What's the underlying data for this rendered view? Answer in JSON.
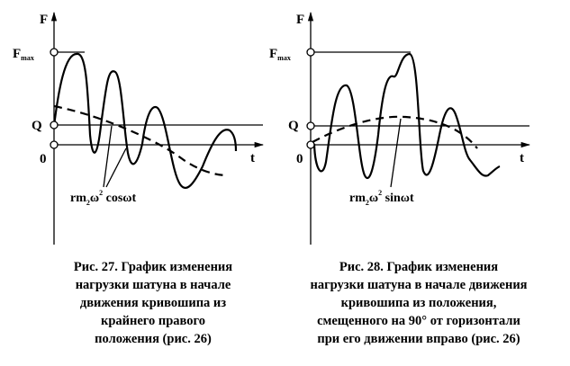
{
  "figures": [
    {
      "axis_y": "F",
      "fmax": {
        "main": "F",
        "sub": "max"
      },
      "q": "Q",
      "zero": "0",
      "axis_x": "t",
      "annotation": {
        "pre": "rm",
        "sub": "2",
        "mid": "ω",
        "sup": "2",
        "post": " cosωt"
      },
      "caption": [
        "Рис. 27. График изменения",
        "нагрузки шатуна в начале",
        "движения кривошипа из",
        "крайнего правого",
        "положения (рис. 26)"
      ]
    },
    {
      "axis_y": "F",
      "fmax": {
        "main": "F",
        "sub": "max"
      },
      "q": "Q",
      "zero": "0",
      "axis_x": "t",
      "annotation": {
        "pre": "rm",
        "sub": "2",
        "mid": "ω",
        "sup": "2",
        "post": " sinωt"
      },
      "caption": [
        "Рис. 28. График изменения",
        "нагрузки шатуна в начале движения",
        "кривошипа из положения,",
        "смещенного на 90° от горизонтали",
        "при его движении вправо (рис. 26)"
      ]
    }
  ]
}
